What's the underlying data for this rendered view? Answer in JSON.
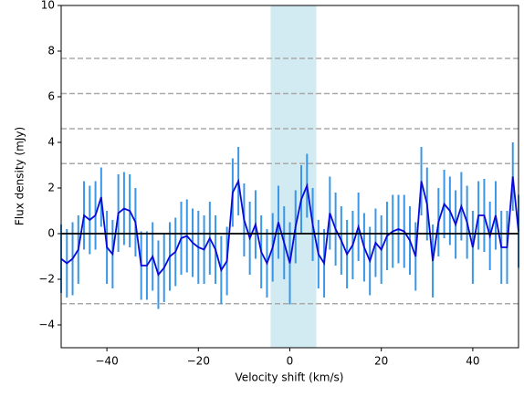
{
  "chart_data": {
    "type": "errorline",
    "xlabel": "Velocity shift (km/s)",
    "ylabel": "Flux density (mJy)",
    "xlim": [
      -50,
      50
    ],
    "ylim": [
      -5,
      10
    ],
    "xticks": [
      {
        "value": -40,
        "label": "−40"
      },
      {
        "value": -20,
        "label": "−20"
      },
      0,
      20,
      40
    ],
    "yticks": [
      {
        "value": -4,
        "label": "−4"
      },
      {
        "value": -2,
        "label": "−2"
      },
      0,
      2,
      4,
      6,
      8,
      10
    ],
    "span": [
      -4.2,
      5.8
    ],
    "span_color": "#add8e6",
    "hlines": [
      -3.07,
      3.07,
      4.6,
      6.14,
      7.68
    ],
    "hline_color": "#aaaaaa",
    "zero_line": 0,
    "zero_color": "#000000",
    "series": [
      {
        "color": "#0a0ad8",
        "error_color": "#3b97e6",
        "x": [
          -50,
          -48.75,
          -47.5,
          -46.25,
          -45,
          -43.75,
          -42.5,
          -41.25,
          -40,
          -38.75,
          -37.5,
          -36.25,
          -35,
          -33.75,
          -32.5,
          -31.25,
          -30,
          -28.75,
          -27.5,
          -26.25,
          -25,
          -23.75,
          -22.5,
          -21.25,
          -20,
          -18.75,
          -17.5,
          -16.25,
          -15,
          -13.75,
          -12.5,
          -11.25,
          -10,
          -8.75,
          -7.5,
          -6.25,
          -5,
          -3.75,
          -2.5,
          -1.25,
          0,
          1.25,
          2.5,
          3.75,
          5,
          6.25,
          7.5,
          8.75,
          10,
          11.25,
          12.5,
          13.75,
          15,
          16.25,
          17.5,
          18.75,
          20,
          21.25,
          22.5,
          23.75,
          25,
          26.25,
          27.5,
          28.75,
          30,
          31.25,
          32.5,
          33.75,
          35,
          36.25,
          37.5,
          38.75,
          40,
          41.25,
          42.5,
          43.75,
          45,
          46.25,
          47.5,
          48.75,
          50
        ],
        "values": [
          -1.1,
          -1.3,
          -1.1,
          -0.7,
          0.8,
          0.6,
          0.8,
          1.6,
          -0.6,
          -0.9,
          0.9,
          1.1,
          1.0,
          0.5,
          -1.4,
          -1.4,
          -1.0,
          -1.8,
          -1.5,
          -1.0,
          -0.8,
          -0.2,
          -0.1,
          -0.4,
          -0.6,
          -0.7,
          -0.2,
          -0.7,
          -1.6,
          -1.2,
          1.8,
          2.3,
          0.6,
          -0.2,
          0.4,
          -0.8,
          -1.3,
          -0.6,
          0.5,
          -0.4,
          -1.3,
          0.3,
          1.5,
          2.1,
          0.4,
          -0.9,
          -1.3,
          0.9,
          0.2,
          -0.3,
          -0.9,
          -0.5,
          0.3,
          -0.6,
          -1.2,
          -0.4,
          -0.7,
          -0.1,
          0.1,
          0.2,
          0.1,
          -0.3,
          -1.0,
          2.3,
          1.3,
          -1.2,
          0.5,
          1.3,
          1.0,
          0.4,
          1.2,
          0.5,
          -0.6,
          0.8,
          0.8,
          -0.1,
          0.8,
          -0.6,
          -0.6,
          2.5,
          0.1
        ],
        "errors": [
          1.5,
          1.5,
          1.6,
          1.5,
          1.5,
          1.5,
          1.5,
          1.3,
          1.6,
          1.5,
          1.7,
          1.6,
          1.6,
          1.5,
          1.5,
          1.5,
          1.5,
          1.5,
          1.5,
          1.5,
          1.5,
          1.6,
          1.6,
          1.5,
          1.6,
          1.5,
          1.6,
          1.5,
          1.5,
          1.5,
          1.5,
          1.5,
          1.6,
          1.6,
          1.5,
          1.6,
          1.5,
          1.5,
          1.6,
          1.6,
          1.8,
          1.6,
          1.5,
          1.4,
          1.6,
          1.5,
          1.5,
          1.6,
          1.6,
          1.5,
          1.5,
          1.5,
          1.5,
          1.5,
          1.5,
          1.5,
          1.5,
          1.5,
          1.6,
          1.5,
          1.6,
          1.5,
          1.5,
          1.5,
          1.6,
          1.6,
          1.5,
          1.5,
          1.5,
          1.5,
          1.5,
          1.6,
          1.6,
          1.5,
          1.6,
          1.5,
          1.5,
          1.6,
          1.6,
          1.5,
          1.6
        ]
      }
    ]
  }
}
